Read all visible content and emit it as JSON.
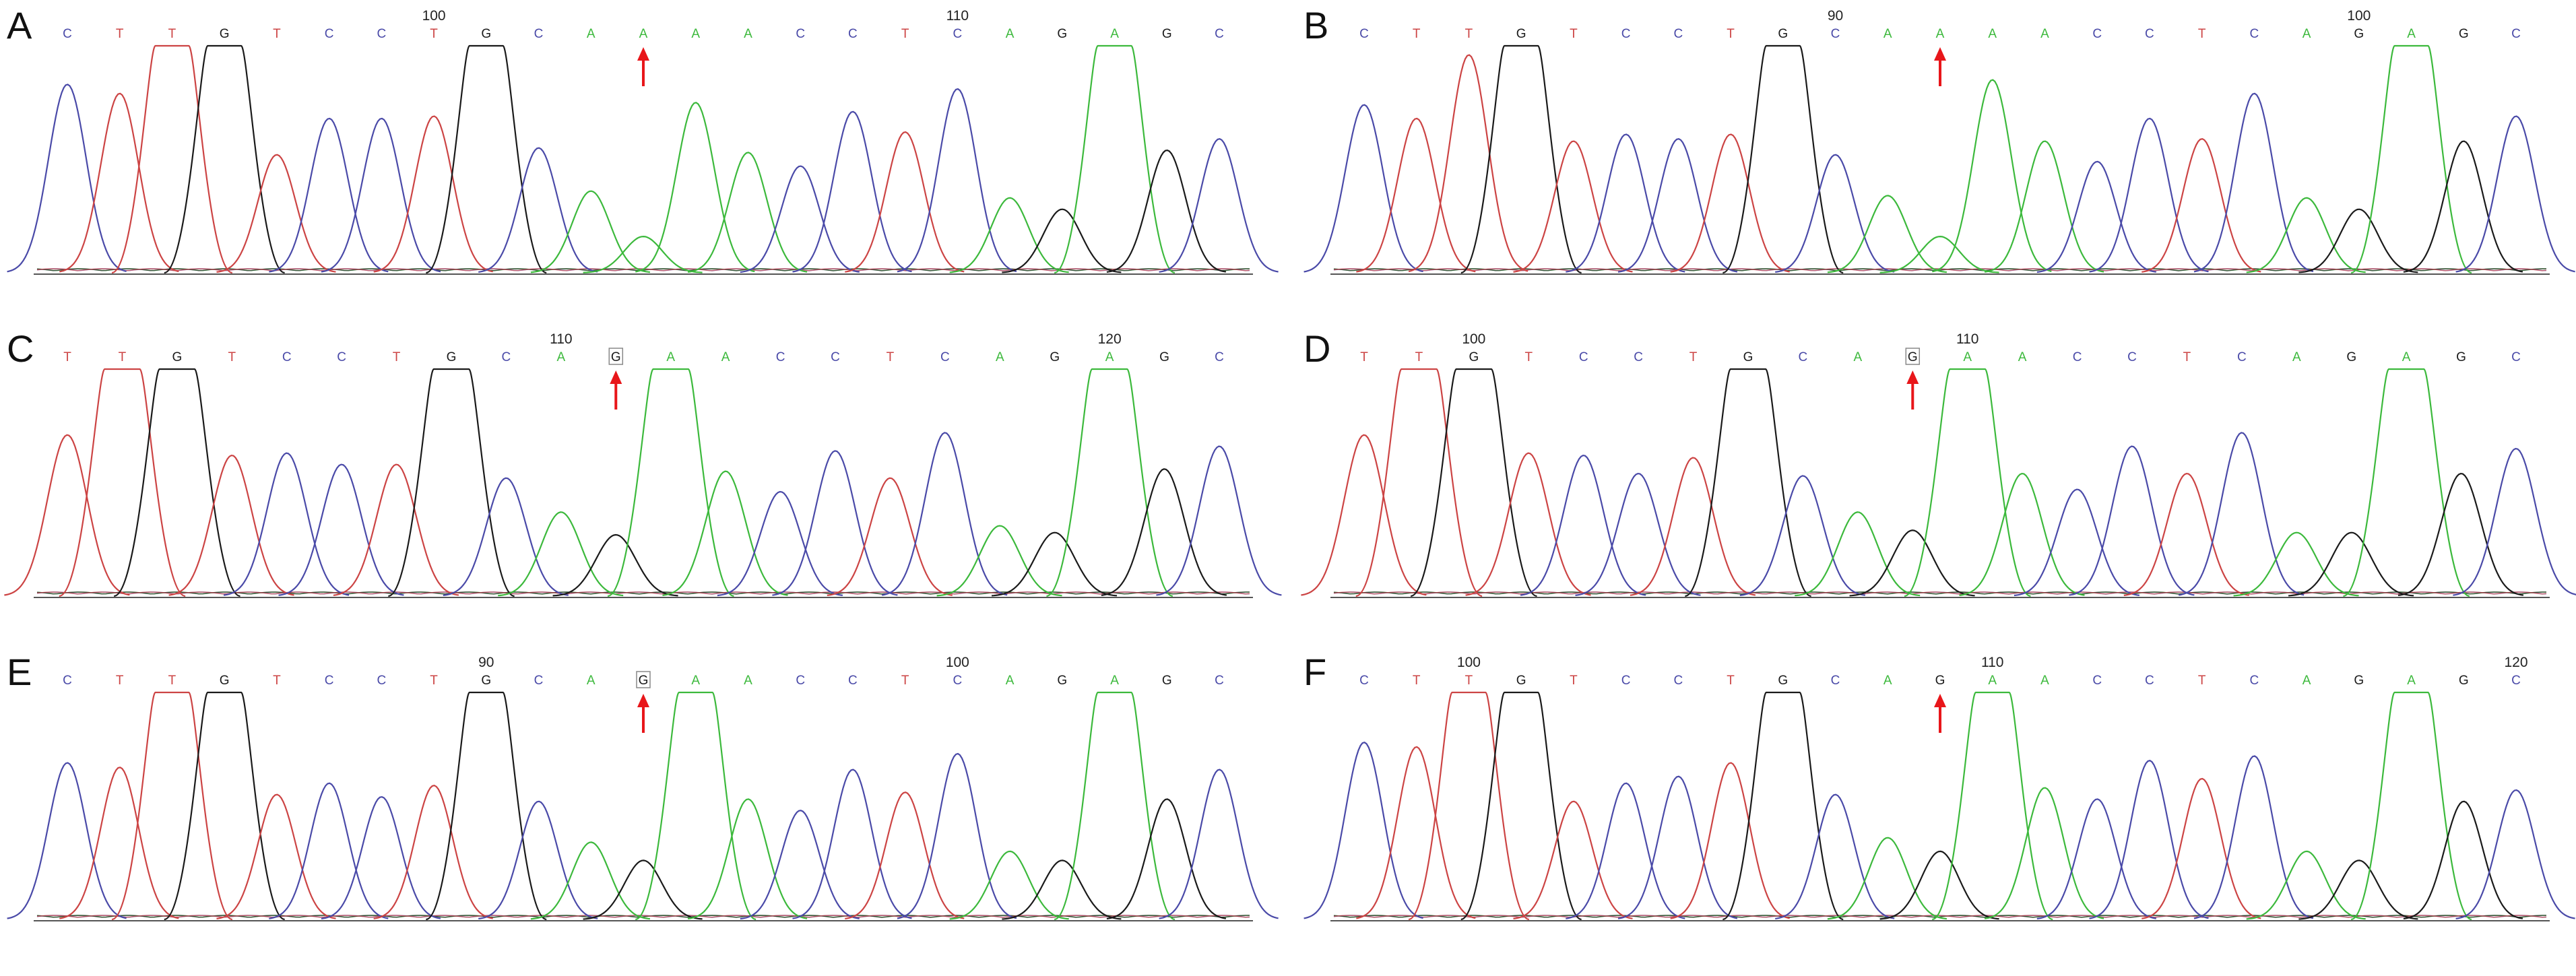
{
  "colors": {
    "A": "#3cb93c",
    "C": "#4a4aa8",
    "G": "#1a1a1a",
    "T": "#cc4444",
    "arrow": "#e8161a",
    "baseline": "#555555"
  },
  "chart_data": [
    {
      "type": "line",
      "panel_label": "A",
      "bases": [
        "C",
        "T",
        "T",
        "G",
        "T",
        "C",
        "C",
        "T",
        "G",
        "C",
        "A",
        "A",
        "A",
        "A",
        "C",
        "C",
        "T",
        "C",
        "A",
        "G",
        "A",
        "G",
        "C"
      ],
      "peak_heights": [
        0.83,
        0.79,
        1.0,
        1.0,
        0.52,
        0.68,
        0.68,
        0.69,
        1.0,
        0.55,
        0.36,
        0.16,
        0.75,
        0.53,
        0.47,
        0.71,
        0.62,
        0.81,
        0.33,
        0.28,
        1.0,
        0.54,
        0.59
      ],
      "position_labels": [
        {
          "index": 7,
          "text": "100"
        },
        {
          "index": 17,
          "text": "110"
        }
      ],
      "arrow_index": 11,
      "boxed_index": null
    },
    {
      "type": "line",
      "panel_label": "B",
      "bases": [
        "C",
        "T",
        "T",
        "G",
        "T",
        "C",
        "C",
        "T",
        "G",
        "C",
        "A",
        "A",
        "A",
        "A",
        "C",
        "C",
        "T",
        "C",
        "A",
        "G",
        "A",
        "G",
        "C"
      ],
      "peak_heights": [
        0.74,
        0.68,
        0.96,
        1.0,
        0.58,
        0.61,
        0.59,
        0.61,
        1.0,
        0.52,
        0.34,
        0.16,
        0.85,
        0.58,
        0.49,
        0.68,
        0.59,
        0.79,
        0.33,
        0.28,
        1.0,
        0.58,
        0.69
      ],
      "position_labels": [
        {
          "index": 9,
          "text": "90"
        },
        {
          "index": 19,
          "text": "100"
        }
      ],
      "arrow_index": 11,
      "boxed_index": null
    },
    {
      "type": "line",
      "panel_label": "C",
      "bases": [
        "T",
        "T",
        "G",
        "T",
        "C",
        "C",
        "T",
        "G",
        "C",
        "A",
        "G",
        "A",
        "A",
        "C",
        "C",
        "T",
        "C",
        "A",
        "G",
        "A",
        "G",
        "C"
      ],
      "peak_heights": [
        0.71,
        1.0,
        1.0,
        0.62,
        0.63,
        0.58,
        0.58,
        1.0,
        0.52,
        0.37,
        0.27,
        1.0,
        0.55,
        0.46,
        0.64,
        0.52,
        0.72,
        0.31,
        0.28,
        1.0,
        0.56,
        0.66
      ],
      "position_labels": [
        {
          "index": 9,
          "text": "110"
        },
        {
          "index": 19,
          "text": "120"
        }
      ],
      "arrow_index": 10,
      "boxed_index": 10
    },
    {
      "type": "line",
      "panel_label": "D",
      "bases": [
        "T",
        "T",
        "G",
        "T",
        "C",
        "C",
        "T",
        "G",
        "C",
        "A",
        "G",
        "A",
        "A",
        "C",
        "C",
        "T",
        "C",
        "A",
        "G",
        "A",
        "G",
        "C"
      ],
      "peak_heights": [
        0.71,
        1.0,
        1.0,
        0.63,
        0.62,
        0.54,
        0.61,
        1.0,
        0.53,
        0.37,
        0.29,
        1.0,
        0.54,
        0.47,
        0.66,
        0.54,
        0.72,
        0.28,
        0.28,
        1.0,
        0.54,
        0.65
      ],
      "position_labels": [
        {
          "index": 2,
          "text": "100"
        },
        {
          "index": 11,
          "text": "110"
        }
      ],
      "arrow_index": 10,
      "boxed_index": 10
    },
    {
      "type": "line",
      "panel_label": "E",
      "bases": [
        "C",
        "T",
        "T",
        "G",
        "T",
        "C",
        "C",
        "T",
        "G",
        "C",
        "A",
        "G",
        "A",
        "A",
        "C",
        "C",
        "T",
        "C",
        "A",
        "G",
        "A",
        "G",
        "C"
      ],
      "peak_heights": [
        0.69,
        0.67,
        1.0,
        1.0,
        0.55,
        0.6,
        0.54,
        0.59,
        1.0,
        0.52,
        0.34,
        0.26,
        1.0,
        0.53,
        0.48,
        0.66,
        0.56,
        0.73,
        0.3,
        0.26,
        1.0,
        0.53,
        0.66
      ],
      "position_labels": [
        {
          "index": 8,
          "text": "90"
        },
        {
          "index": 17,
          "text": "100"
        }
      ],
      "arrow_index": 11,
      "boxed_index": 11
    },
    {
      "type": "line",
      "panel_label": "F",
      "bases": [
        "C",
        "T",
        "T",
        "G",
        "T",
        "C",
        "C",
        "T",
        "G",
        "C",
        "A",
        "G",
        "A",
        "A",
        "C",
        "C",
        "T",
        "C",
        "A",
        "G",
        "A",
        "G",
        "C"
      ],
      "peak_heights": [
        0.78,
        0.76,
        1.0,
        1.0,
        0.52,
        0.6,
        0.63,
        0.69,
        1.0,
        0.55,
        0.36,
        0.3,
        1.0,
        0.58,
        0.53,
        0.7,
        0.62,
        0.72,
        0.3,
        0.26,
        1.0,
        0.52,
        0.57
      ],
      "position_labels": [
        {
          "index": 2,
          "text": "100"
        },
        {
          "index": 12,
          "text": "110"
        },
        {
          "index": 22,
          "text": "120"
        }
      ],
      "arrow_index": 11,
      "boxed_index": null
    }
  ]
}
